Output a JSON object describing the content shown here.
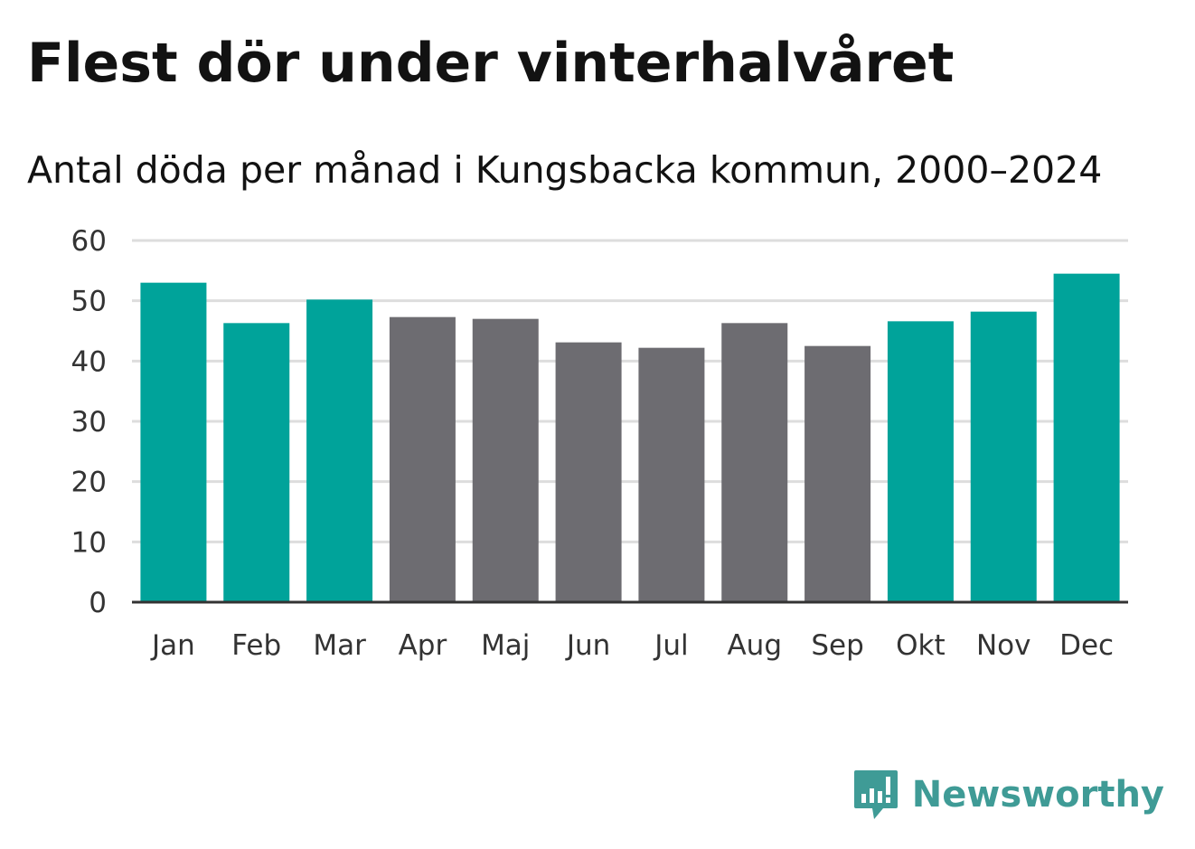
{
  "chart_data": {
    "type": "bar",
    "title": "Flest dör under vinterhalvåret",
    "subtitle": "Antal döda per månad i Kungsbacka kommun, 2000–2024",
    "xlabel": "",
    "ylabel": "",
    "categories": [
      "Jan",
      "Feb",
      "Mar",
      "Apr",
      "Maj",
      "Jun",
      "Jul",
      "Aug",
      "Sep",
      "Okt",
      "Nov",
      "Dec"
    ],
    "values": [
      53.0,
      46.3,
      50.2,
      47.3,
      47.0,
      43.1,
      42.2,
      46.3,
      42.5,
      46.6,
      48.2,
      54.5
    ],
    "highlighted": [
      true,
      true,
      true,
      false,
      false,
      false,
      false,
      false,
      false,
      true,
      true,
      true
    ],
    "ylim": [
      0,
      60
    ],
    "yticks": [
      "0",
      "10",
      "20",
      "30",
      "40",
      "50",
      "60"
    ],
    "grid": true,
    "legend": "none"
  },
  "colors": {
    "highlight": "#00a39a",
    "default": "#6d6c71",
    "grid": "#dddddd",
    "axis": "#333333",
    "brand": "#3f9b96"
  },
  "brand": {
    "name": "Newsworthy",
    "icon": "bar-chart-speech-bubble-icon"
  }
}
